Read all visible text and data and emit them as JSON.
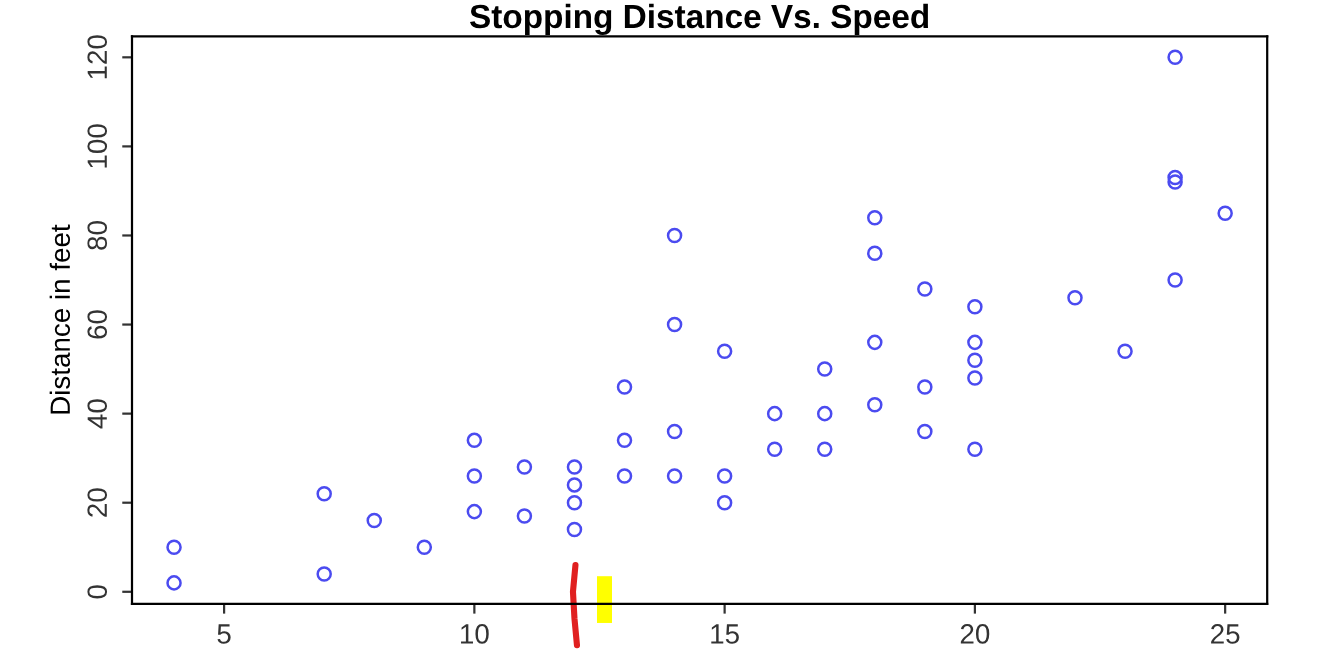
{
  "chart_data": {
    "type": "scatter",
    "title": "Stopping Distance Vs. Speed",
    "ylabel": "Distance in feet",
    "x": [
      4,
      4,
      7,
      7,
      8,
      9,
      10,
      10,
      10,
      11,
      11,
      12,
      12,
      12,
      12,
      13,
      13,
      13,
      14,
      14,
      14,
      14,
      15,
      15,
      15,
      16,
      16,
      17,
      17,
      17,
      18,
      18,
      18,
      18,
      19,
      19,
      19,
      20,
      20,
      20,
      20,
      20,
      22,
      23,
      24,
      24,
      24,
      24,
      25
    ],
    "series": [
      {
        "color": "#4b4bf0",
        "values": [
          2,
          10,
          4,
          22,
          16,
          10,
          18,
          26,
          34,
          17,
          28,
          14,
          20,
          24,
          28,
          26,
          34,
          46,
          26,
          36,
          60,
          80,
          20,
          26,
          54,
          32,
          40,
          32,
          40,
          50,
          42,
          56,
          76,
          84,
          36,
          46,
          68,
          32,
          48,
          52,
          56,
          64,
          66,
          54,
          70,
          92,
          93,
          120,
          85
        ]
      }
    ],
    "xlim": [
      3.16,
      25.84
    ],
    "ylim": [
      -2.72,
      124.72
    ],
    "xticks": [
      5,
      10,
      15,
      20,
      25
    ],
    "yticks": [
      0,
      20,
      40,
      60,
      80,
      100,
      120
    ],
    "marker": "circle",
    "grid": false,
    "legend": false
  }
}
